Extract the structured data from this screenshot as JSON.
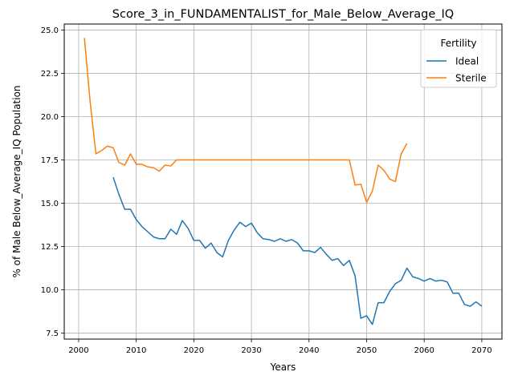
{
  "chart_data": {
    "type": "line",
    "title": "Score_3_in_FUNDAMENTALIST_for_Male_Below_Average_IQ",
    "xlabel": "Years",
    "ylabel": "% of Male Below_Average_IQ Population",
    "xlim": [
      1997.5,
      2073.5
    ],
    "ylim": [
      7.15,
      25.35
    ],
    "xticks": [
      2000,
      2010,
      2020,
      2030,
      2040,
      2050,
      2060,
      2070
    ],
    "yticks": [
      7.5,
      10.0,
      12.5,
      15.0,
      17.5,
      20.0,
      22.5,
      25.0
    ],
    "xtick_labels": [
      "2000",
      "2010",
      "2020",
      "2030",
      "2040",
      "2050",
      "2060",
      "2070"
    ],
    "ytick_labels": [
      "7.5",
      "10.0",
      "12.5",
      "15.0",
      "17.5",
      "20.0",
      "22.5",
      "25.0"
    ],
    "grid": true,
    "legend": {
      "title": "Fertility",
      "position": "top-right"
    },
    "series": [
      {
        "name": "Ideal",
        "color": "#1f77b4",
        "x": [
          2006,
          2007,
          2008,
          2009,
          2010,
          2011,
          2012,
          2013,
          2014,
          2015,
          2016,
          2017,
          2018,
          2019,
          2020,
          2021,
          2022,
          2023,
          2024,
          2025,
          2026,
          2027,
          2028,
          2029,
          2030,
          2031,
          2032,
          2033,
          2034,
          2035,
          2036,
          2037,
          2038,
          2039,
          2040,
          2041,
          2042,
          2043,
          2044,
          2045,
          2046,
          2047,
          2048,
          2049,
          2050,
          2051,
          2052,
          2053,
          2054,
          2055,
          2056,
          2057,
          2058,
          2059,
          2060,
          2061,
          2062,
          2063,
          2064,
          2065,
          2066,
          2067,
          2068,
          2069,
          2070
        ],
        "y": [
          16.5,
          15.5,
          14.65,
          14.65,
          14.05,
          13.65,
          13.35,
          13.05,
          12.95,
          12.95,
          13.5,
          13.2,
          14.0,
          13.55,
          12.85,
          12.85,
          12.4,
          12.7,
          12.15,
          11.9,
          12.85,
          13.45,
          13.9,
          13.65,
          13.85,
          13.3,
          12.95,
          12.9,
          12.8,
          12.95,
          12.8,
          12.9,
          12.7,
          12.25,
          12.25,
          12.15,
          12.45,
          12.05,
          11.7,
          11.8,
          11.4,
          11.7,
          10.8,
          8.35,
          8.5,
          8.0,
          9.25,
          9.25,
          9.9,
          10.35,
          10.55,
          11.25,
          10.75,
          10.65,
          10.5,
          10.65,
          10.5,
          10.55,
          10.45,
          9.8,
          9.8,
          9.15,
          9.05,
          9.3,
          9.05
        ]
      },
      {
        "name": "Sterile",
        "color": "#ff7f0e",
        "x": [
          2001,
          2002,
          2003,
          2004,
          2005,
          2006,
          2007,
          2008,
          2009,
          2010,
          2011,
          2012,
          2013,
          2014,
          2015,
          2016,
          2017,
          2018,
          2019,
          2020,
          2021,
          2022,
          2023,
          2024,
          2025,
          2026,
          2027,
          2028,
          2029,
          2030,
          2031,
          2032,
          2033,
          2034,
          2035,
          2036,
          2037,
          2038,
          2039,
          2040,
          2041,
          2042,
          2043,
          2044,
          2045,
          2046,
          2047,
          2048,
          2049,
          2050,
          2051,
          2052,
          2053,
          2054,
          2055,
          2056,
          2057
        ],
        "y": [
          24.55,
          20.85,
          17.85,
          18.05,
          18.3,
          18.2,
          17.35,
          17.2,
          17.85,
          17.25,
          17.25,
          17.1,
          17.05,
          16.85,
          17.2,
          17.15,
          17.5,
          17.5,
          17.5,
          17.5,
          17.5,
          17.5,
          17.5,
          17.5,
          17.5,
          17.5,
          17.5,
          17.5,
          17.5,
          17.5,
          17.5,
          17.5,
          17.5,
          17.5,
          17.5,
          17.5,
          17.5,
          17.5,
          17.5,
          17.5,
          17.5,
          17.5,
          17.5,
          17.5,
          17.5,
          17.5,
          17.5,
          16.05,
          16.1,
          15.05,
          15.7,
          17.2,
          16.9,
          16.4,
          16.25,
          17.85,
          18.45
        ]
      }
    ]
  }
}
